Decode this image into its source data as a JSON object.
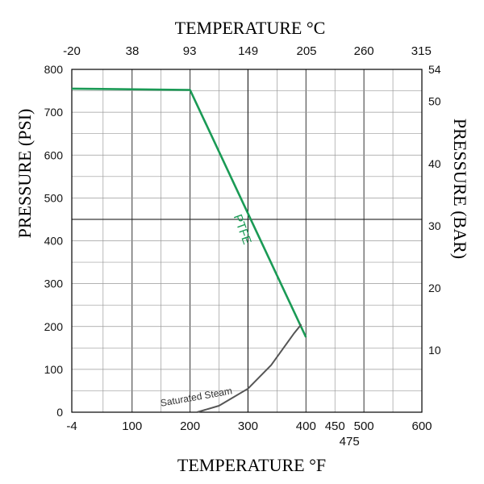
{
  "chart_data": {
    "type": "line",
    "title_top": "TEMPERATURE °C",
    "xlabel": "TEMPERATURE °F",
    "ylabel_left": "PRESSURE (PSI)",
    "ylabel_right": "PRESSURE (BAR)",
    "x_tick_labels": [
      "-4",
      "100",
      "200",
      "300",
      "400",
      "450",
      "475",
      "500",
      "600"
    ],
    "x_top_tick_labels": [
      "-20",
      "38",
      "93",
      "149",
      "205",
      "260",
      "315"
    ],
    "y_left_tick_labels": [
      "0",
      "100",
      "200",
      "300",
      "400",
      "500",
      "600",
      "700",
      "800"
    ],
    "y_right_tick_labels": [
      "10",
      "20",
      "30",
      "40",
      "50",
      "54"
    ],
    "xlim": [
      -4,
      600
    ],
    "ylim": [
      0,
      800
    ],
    "grid": true,
    "series": [
      {
        "name": "PTFE",
        "color": "#1a9a55",
        "points": [
          [
            -4,
            755
          ],
          [
            200,
            752
          ],
          [
            400,
            175
          ]
        ]
      },
      {
        "name": "Saturated Steam",
        "color": "#555555",
        "points": [
          [
            212,
            0
          ],
          [
            250,
            15
          ],
          [
            300,
            55
          ],
          [
            340,
            110
          ],
          [
            380,
            185
          ],
          [
            392,
            205
          ]
        ]
      }
    ]
  }
}
